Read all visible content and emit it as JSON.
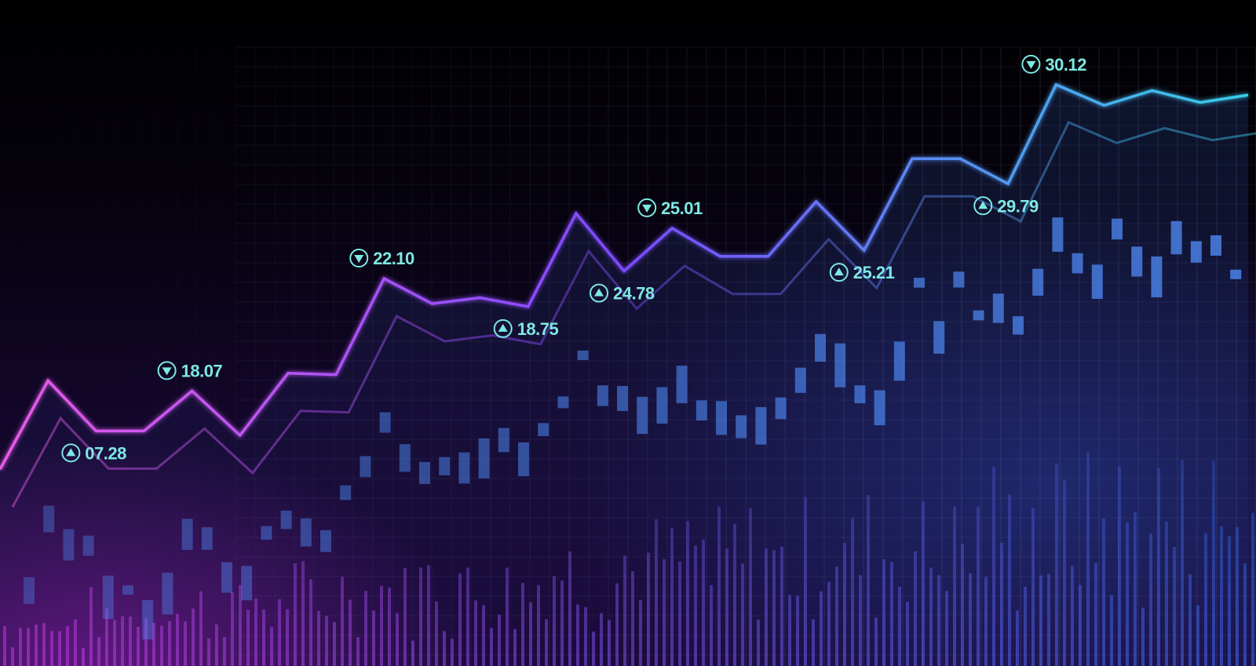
{
  "colors": {
    "line_start": "#e85be8",
    "line_mid": "#7b4bff",
    "line_end": "#37cfe8",
    "label_text": "#7ee8e3",
    "candle": "#4f8cf5",
    "bar_left": "#c63be0",
    "bar_right": "#3a6cf0"
  },
  "icons": {
    "up": "triangle-up-in-circle-icon",
    "down": "triangle-down-in-circle-icon"
  },
  "chart_data": {
    "type": "line",
    "title": "",
    "xlabel": "",
    "ylabel": "",
    "grid": true,
    "x": [
      0,
      1,
      2,
      3,
      4,
      5,
      6,
      7,
      8,
      9,
      10,
      11,
      12,
      13,
      14,
      15,
      16,
      17,
      18,
      19,
      20,
      21,
      22,
      23,
      24,
      25,
      26
    ],
    "series": [
      {
        "values": [
          14.4,
          20.4,
          17.0,
          17.0,
          19.7,
          16.7,
          20.9,
          20.8,
          27.3,
          25.6,
          26.0,
          25.4,
          31.7,
          27.8,
          30.7,
          28.8,
          28.8,
          32.5,
          29.2,
          35.4,
          35.4,
          33.7,
          40.4,
          39.0,
          40.0,
          39.2,
          39.7
        ]
      }
    ],
    "annotations": [
      {
        "text": "07.28",
        "direction": "up",
        "x": 2
      },
      {
        "text": "18.07",
        "direction": "down",
        "x": 4
      },
      {
        "text": "22.10",
        "direction": "down",
        "x": 8
      },
      {
        "text": "18.75",
        "direction": "up",
        "x": 11
      },
      {
        "text": "24.78",
        "direction": "up",
        "x": 13
      },
      {
        "text": "25.01",
        "direction": "down",
        "x": 14
      },
      {
        "text": "25.21",
        "direction": "up",
        "x": 18
      },
      {
        "text": "29.79",
        "direction": "up",
        "x": 21
      },
      {
        "text": "30.12",
        "direction": "down",
        "x": 22
      }
    ]
  }
}
